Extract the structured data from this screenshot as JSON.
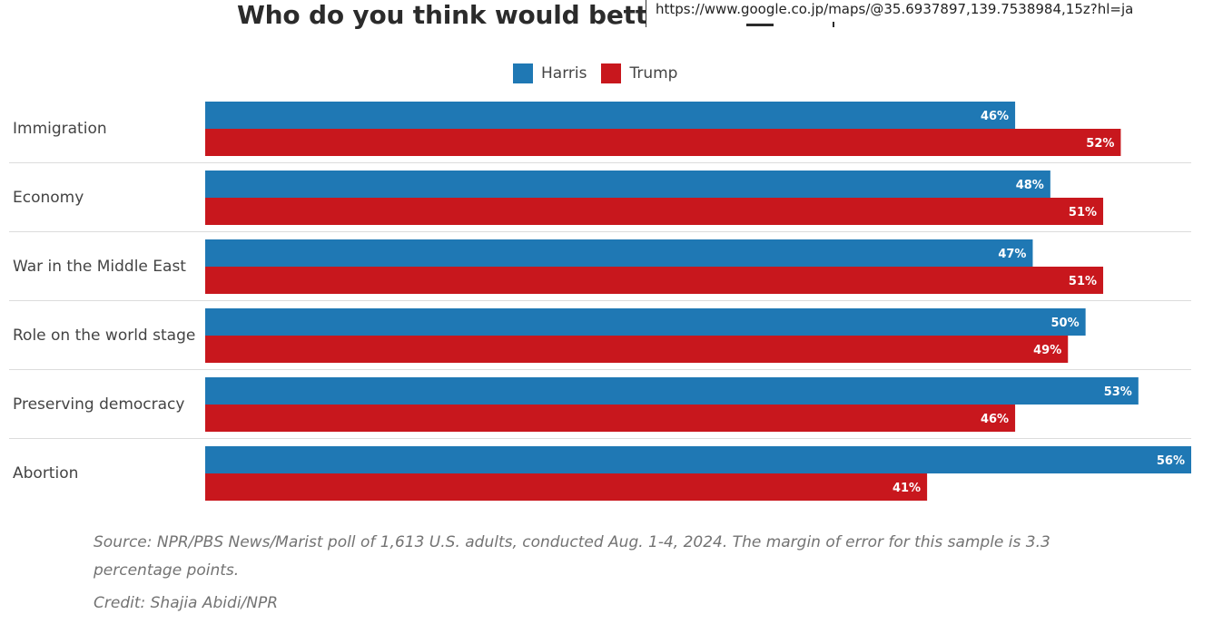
{
  "title": "Who do you think would better",
  "url_tooltip": "https://www.google.co.jp/maps/@35.6937897,139.7538984,15z?hl=ja",
  "legend": [
    {
      "label": "Harris",
      "color": "#1f78b4"
    },
    {
      "label": "Trump",
      "color": "#c8171d"
    }
  ],
  "chart_data": {
    "type": "bar",
    "orientation": "horizontal",
    "categories": [
      "Immigration",
      "Economy",
      "War in the Middle East",
      "Role on the world stage",
      "Preserving democracy",
      "Abortion"
    ],
    "series": [
      {
        "name": "Harris",
        "color": "#1f78b4",
        "values": [
          46,
          48,
          47,
          50,
          53,
          56
        ],
        "labels": [
          "46%",
          "48%",
          "47%",
          "50%",
          "53%",
          "56%"
        ]
      },
      {
        "name": "Trump",
        "color": "#c8171d",
        "values": [
          52,
          51,
          51,
          49,
          46,
          41
        ],
        "labels": [
          "52%",
          "51%",
          "51%",
          "49%",
          "46%",
          "41%"
        ]
      }
    ],
    "xlim": [
      0,
      56
    ],
    "legend_position": "top-center",
    "grid": false,
    "separators": true
  },
  "source": "Source: NPR/PBS News/Marist poll of 1,613 U.S. adults, conducted Aug. 1-4, 2024. The margin of error for this sample is 3.3 percentage points.",
  "credit": "Credit: Shajia Abidi/NPR"
}
